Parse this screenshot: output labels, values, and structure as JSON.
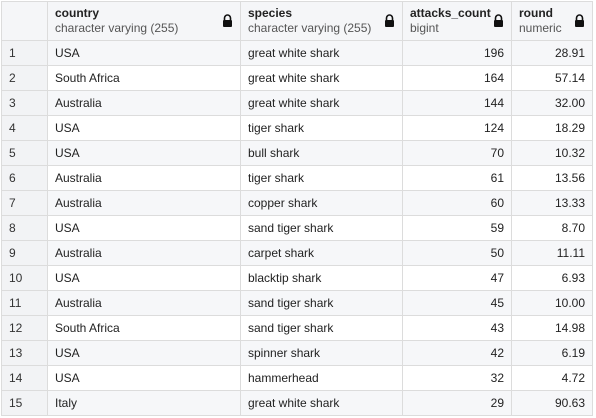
{
  "columns": [
    {
      "name": "country",
      "type": "character varying (255)"
    },
    {
      "name": "species",
      "type": "character varying (255)"
    },
    {
      "name": "attacks_count",
      "type": "bigint"
    },
    {
      "name": "round",
      "type": "numeric"
    }
  ],
  "rows": [
    {
      "num": "1",
      "country": "USA",
      "species": "great white shark",
      "attacks_count": "196",
      "round": "28.91"
    },
    {
      "num": "2",
      "country": "South Africa",
      "species": "great white shark",
      "attacks_count": "164",
      "round": "57.14"
    },
    {
      "num": "3",
      "country": "Australia",
      "species": "great white shark",
      "attacks_count": "144",
      "round": "32.00"
    },
    {
      "num": "4",
      "country": "USA",
      "species": "tiger shark",
      "attacks_count": "124",
      "round": "18.29"
    },
    {
      "num": "5",
      "country": "USA",
      "species": "bull shark",
      "attacks_count": "70",
      "round": "10.32"
    },
    {
      "num": "6",
      "country": "Australia",
      "species": "tiger shark",
      "attacks_count": "61",
      "round": "13.56"
    },
    {
      "num": "7",
      "country": "Australia",
      "species": "copper shark",
      "attacks_count": "60",
      "round": "13.33"
    },
    {
      "num": "8",
      "country": "USA",
      "species": "sand tiger shark",
      "attacks_count": "59",
      "round": "8.70"
    },
    {
      "num": "9",
      "country": "Australia",
      "species": "carpet shark",
      "attacks_count": "50",
      "round": "11.11"
    },
    {
      "num": "10",
      "country": "USA",
      "species": "blacktip shark",
      "attacks_count": "47",
      "round": "6.93"
    },
    {
      "num": "11",
      "country": "Australia",
      "species": "sand tiger shark",
      "attacks_count": "45",
      "round": "10.00"
    },
    {
      "num": "12",
      "country": "South Africa",
      "species": "sand tiger shark",
      "attacks_count": "43",
      "round": "14.98"
    },
    {
      "num": "13",
      "country": "USA",
      "species": "spinner shark",
      "attacks_count": "42",
      "round": "6.19"
    },
    {
      "num": "14",
      "country": "USA",
      "species": "hammerhead",
      "attacks_count": "32",
      "round": "4.72"
    },
    {
      "num": "15",
      "country": "Italy",
      "species": "great white shark",
      "attacks_count": "29",
      "round": "90.63"
    }
  ],
  "icons": {
    "column_lock": "lock-icon"
  },
  "colors": {
    "header_bg": "#f5f6f8",
    "row_stripe": "#f6f7f9",
    "border": "#dcdcdc"
  }
}
